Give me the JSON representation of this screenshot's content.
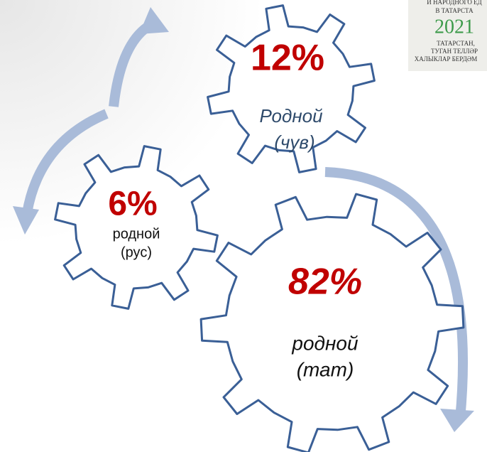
{
  "logo": {
    "lines": [
      "И НАРОДНОГО ЕД",
      "В ТАТАРСТА"
    ],
    "year": "2021",
    "bottom_lines": [
      "ТАТАРСТАН,",
      "ТУГАН ТЕЛЛӘР",
      "ХАЛЫКЛАР БЕРДӘМ"
    ]
  },
  "gears": [
    {
      "value_label": "12%",
      "label_lines": [
        "Родной",
        "(чув)"
      ]
    },
    {
      "value_label": "6%",
      "label_lines": [
        "родной",
        "(рус)"
      ]
    },
    {
      "value_label": "82%",
      "label_lines": [
        "родной",
        "(тат)"
      ]
    }
  ]
}
